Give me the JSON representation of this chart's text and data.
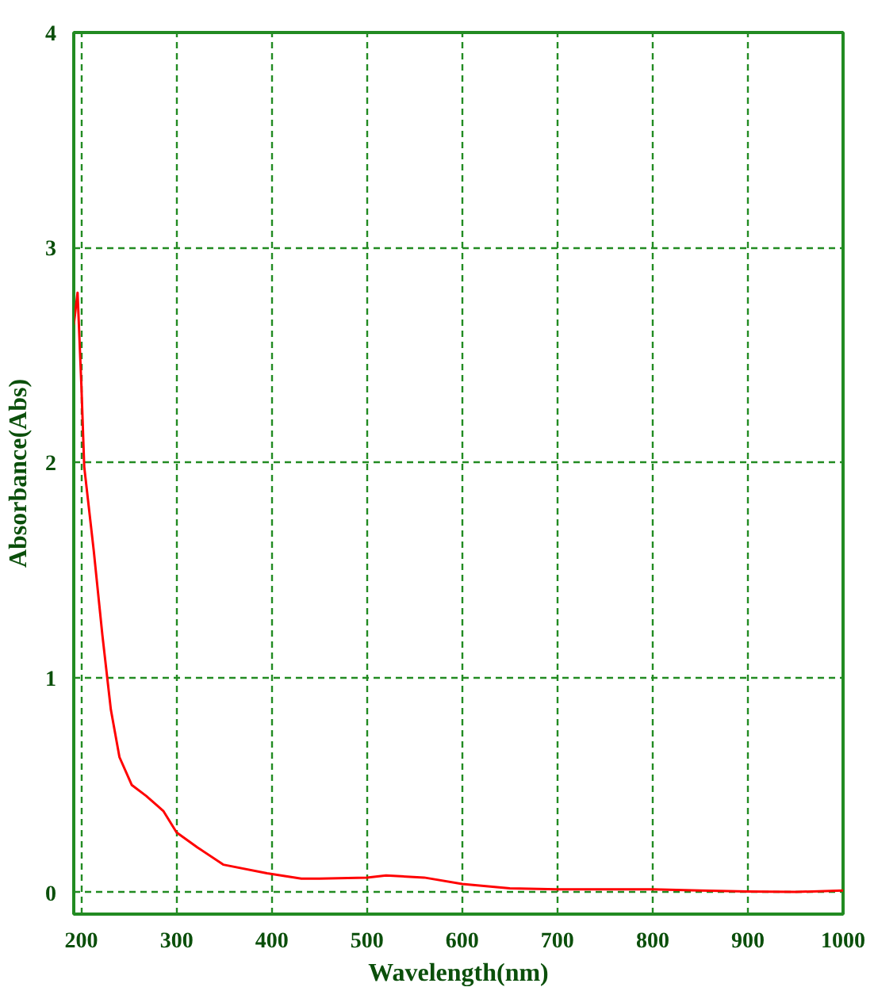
{
  "chart_data": {
    "type": "line",
    "xlabel": "Wavelength(nm)",
    "ylabel": "Absorbance(Abs)",
    "x": [
      192,
      196,
      200,
      203,
      213,
      222,
      231,
      240,
      253,
      268,
      286,
      300,
      322,
      349,
      395,
      431,
      450,
      500,
      520,
      560,
      600,
      650,
      700,
      800,
      850,
      900,
      950,
      1000
    ],
    "series": [
      {
        "color": "#ff0000",
        "values": [
          2.64,
          2.79,
          2.36,
          1.98,
          1.59,
          1.2,
          0.85,
          0.63,
          0.5,
          0.45,
          0.38,
          0.28,
          0.21,
          0.13,
          0.09,
          0.065,
          0.065,
          0.07,
          0.08,
          0.07,
          0.04,
          0.02,
          0.015,
          0.015,
          0.01,
          0.005,
          0.003,
          0.01
        ]
      }
    ],
    "xlim": [
      192,
      1000
    ],
    "ylim": [
      -0.1,
      4
    ],
    "xticks": [
      200,
      300,
      400,
      500,
      600,
      700,
      800,
      900,
      1000
    ],
    "yticks": [
      0,
      1,
      2,
      3,
      4
    ],
    "grid": true,
    "line_style": "solid",
    "marker": "none"
  }
}
